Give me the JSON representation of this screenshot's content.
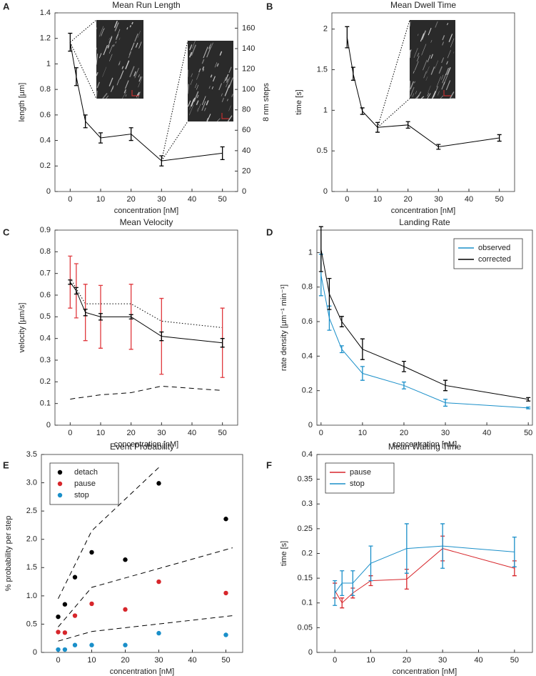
{
  "chart_data": [
    {
      "type": "line",
      "panel": "A",
      "title": "Mean Run Length",
      "xlabel": "concentration [nM]",
      "ylabel": "length [µm]",
      "y2label": "8 nm steps",
      "x": [
        0,
        2,
        5,
        10,
        20,
        30,
        50
      ],
      "xlim": [
        -5,
        55
      ],
      "xticks": [
        0,
        10,
        20,
        30,
        40,
        50
      ],
      "ylim": [
        0,
        1.4
      ],
      "yticks": [
        0,
        0.2,
        0.4,
        0.6,
        0.8,
        1,
        1.2,
        1.4
      ],
      "y2lim": [
        0,
        175
      ],
      "y2ticks": [
        0,
        20,
        40,
        60,
        80,
        100,
        120,
        140,
        160
      ],
      "series": [
        {
          "color": "#000000",
          "style": "solid",
          "values": [
            1.17,
            0.9,
            0.55,
            0.42,
            0.45,
            0.24,
            0.3
          ],
          "errors": [
            0.07,
            0.07,
            0.05,
            0.04,
            0.05,
            0.04,
            0.05
          ]
        }
      ]
    },
    {
      "type": "line",
      "panel": "B",
      "title": "Mean Dwell Time",
      "xlabel": "concentration [nM]",
      "ylabel": "time [s]",
      "x": [
        0,
        2,
        5,
        10,
        20,
        30,
        50
      ],
      "xlim": [
        -5,
        55
      ],
      "xticks": [
        0,
        10,
        20,
        30,
        40,
        50
      ],
      "ylim": [
        0,
        2.2
      ],
      "yticks": [
        0,
        0.5,
        1,
        1.5,
        2
      ],
      "series": [
        {
          "color": "#000000",
          "style": "solid",
          "values": [
            1.9,
            1.45,
            0.99,
            0.79,
            0.82,
            0.55,
            0.66
          ],
          "errors": [
            0.13,
            0.08,
            0.04,
            0.06,
            0.04,
            0.03,
            0.04
          ]
        }
      ]
    },
    {
      "type": "line",
      "panel": "C",
      "title": "Mean Velocity",
      "xlabel": "concentration [nM]",
      "ylabel": "velocity [µm/s]",
      "x": [
        0,
        2,
        5,
        10,
        20,
        30,
        50
      ],
      "xlim": [
        -5,
        55
      ],
      "xticks": [
        0,
        10,
        20,
        30,
        40,
        50
      ],
      "ylim": [
        0,
        0.9
      ],
      "yticks": [
        0,
        0.1,
        0.2,
        0.3,
        0.4,
        0.5,
        0.6,
        0.7,
        0.8,
        0.9
      ],
      "series": [
        {
          "color": "#000000",
          "style": "dotted",
          "values": [
            0.68,
            0.63,
            0.56,
            0.56,
            0.56,
            0.48,
            0.45
          ]
        },
        {
          "color": "#000000",
          "style": "dashed",
          "values": [
            0.12,
            0.125,
            0.13,
            0.14,
            0.15,
            0.18,
            0.16
          ]
        },
        {
          "color": "#e0393e",
          "style": "none",
          "values": [
            0.66,
            0.62,
            0.52,
            0.5,
            0.5,
            0.41,
            0.38
          ],
          "errors": [
            0.12,
            0.125,
            0.13,
            0.145,
            0.15,
            0.175,
            0.16
          ]
        },
        {
          "color": "#000000",
          "style": "solid",
          "values": [
            0.66,
            0.62,
            0.52,
            0.5,
            0.5,
            0.41,
            0.38
          ],
          "errors": [
            0.01,
            0.015,
            0.015,
            0.015,
            0.01,
            0.02,
            0.02
          ]
        }
      ]
    },
    {
      "type": "line",
      "panel": "D",
      "title": "Landing Rate",
      "xlabel": "concentration [nM]",
      "ylabel": "rate density [µm⁻¹ min⁻¹]",
      "x": [
        0,
        2,
        5,
        10,
        20,
        30,
        50
      ],
      "xlim": [
        -1,
        51
      ],
      "xticks": [
        0,
        10,
        20,
        30,
        40,
        50
      ],
      "ylim": [
        0,
        1.13
      ],
      "yticks": [
        0,
        0.2,
        0.4,
        0.6,
        0.8,
        1
      ],
      "legend": "upper right",
      "series": [
        {
          "name": "observed",
          "color": "#1a8fc9",
          "style": "solid",
          "values": [
            0.87,
            0.62,
            0.44,
            0.3,
            0.23,
            0.13,
            0.1
          ],
          "errors": [
            0.12,
            0.07,
            0.02,
            0.04,
            0.02,
            0.02,
            0.005
          ]
        },
        {
          "name": "corrected",
          "color": "#000000",
          "style": "solid",
          "values": [
            1.02,
            0.76,
            0.6,
            0.44,
            0.34,
            0.23,
            0.15
          ],
          "errors": [
            0.13,
            0.09,
            0.03,
            0.06,
            0.03,
            0.03,
            0.01
          ]
        }
      ]
    },
    {
      "type": "scatter",
      "panel": "E",
      "title": "Event Probability",
      "xlabel": "concentration [nM]",
      "ylabel": "% probability per step",
      "x": [
        0,
        2,
        5,
        10,
        20,
        30,
        50
      ],
      "xlim": [
        -5,
        55
      ],
      "xticks": [
        0,
        10,
        20,
        30,
        40,
        50
      ],
      "ylim": [
        0,
        3.5
      ],
      "yticks": [
        0,
        0.5,
        {
          "value": 1,
          "label": "1.0"
        },
        1.5,
        {
          "value": 2,
          "label": "2.0"
        },
        2.5,
        {
          "value": 3,
          "label": "3.0"
        },
        3.5
      ],
      "legend": "upper left",
      "series": [
        {
          "name": "detach",
          "color": "#000000",
          "style": "none",
          "marker": "dot",
          "values": [
            0.63,
            0.85,
            1.33,
            1.77,
            1.64,
            2.99,
            2.36
          ]
        },
        {
          "name": "pause",
          "color": "#d7262b",
          "style": "none",
          "marker": "dot",
          "values": [
            0.36,
            0.35,
            0.65,
            0.86,
            0.76,
            1.25,
            1.05
          ]
        },
        {
          "name": "stop",
          "color": "#1a8fc9",
          "style": "none",
          "marker": "dot",
          "values": [
            0.05,
            0.05,
            0.13,
            0.13,
            0.13,
            0.34,
            0.31
          ]
        },
        {
          "color": "#000000",
          "style": "dashed",
          "x": [
            0,
            10,
            30
          ],
          "values": [
            0.95,
            2.15,
            3.27
          ]
        },
        {
          "color": "#000000",
          "style": "dashed",
          "x": [
            0,
            10,
            52
          ],
          "values": [
            0.45,
            1.15,
            1.85
          ]
        },
        {
          "color": "#000000",
          "style": "dashed",
          "x": [
            0,
            10,
            52
          ],
          "values": [
            0.2,
            0.37,
            0.65
          ]
        }
      ]
    },
    {
      "type": "line",
      "panel": "F",
      "title": "Mean Waiting Time",
      "xlabel": "concentration [nM]",
      "ylabel": "time [s]",
      "x": [
        0,
        2,
        5,
        10,
        20,
        30,
        50
      ],
      "xlim": [
        -5,
        55
      ],
      "xticks": [
        0,
        10,
        20,
        30,
        40,
        50
      ],
      "ylim": [
        0,
        0.4
      ],
      "yticks": [
        0,
        0.05,
        0.1,
        0.15,
        0.2,
        0.25,
        0.3,
        0.35,
        0.4
      ],
      "legend": "upper left",
      "series": [
        {
          "name": "pause",
          "color": "#d7262b",
          "style": "solid",
          "values": [
            0.125,
            0.1,
            0.12,
            0.145,
            0.148,
            0.21,
            0.17
          ],
          "errors": [
            0.015,
            0.01,
            0.01,
            0.01,
            0.02,
            0.025,
            0.015
          ]
        },
        {
          "name": "stop",
          "color": "#1a8fc9",
          "style": "solid",
          "values": [
            0.12,
            0.14,
            0.14,
            0.18,
            0.21,
            0.215,
            0.203
          ],
          "errors": [
            0.025,
            0.025,
            0.025,
            0.035,
            0.05,
            0.045,
            0.03
          ]
        }
      ]
    }
  ]
}
